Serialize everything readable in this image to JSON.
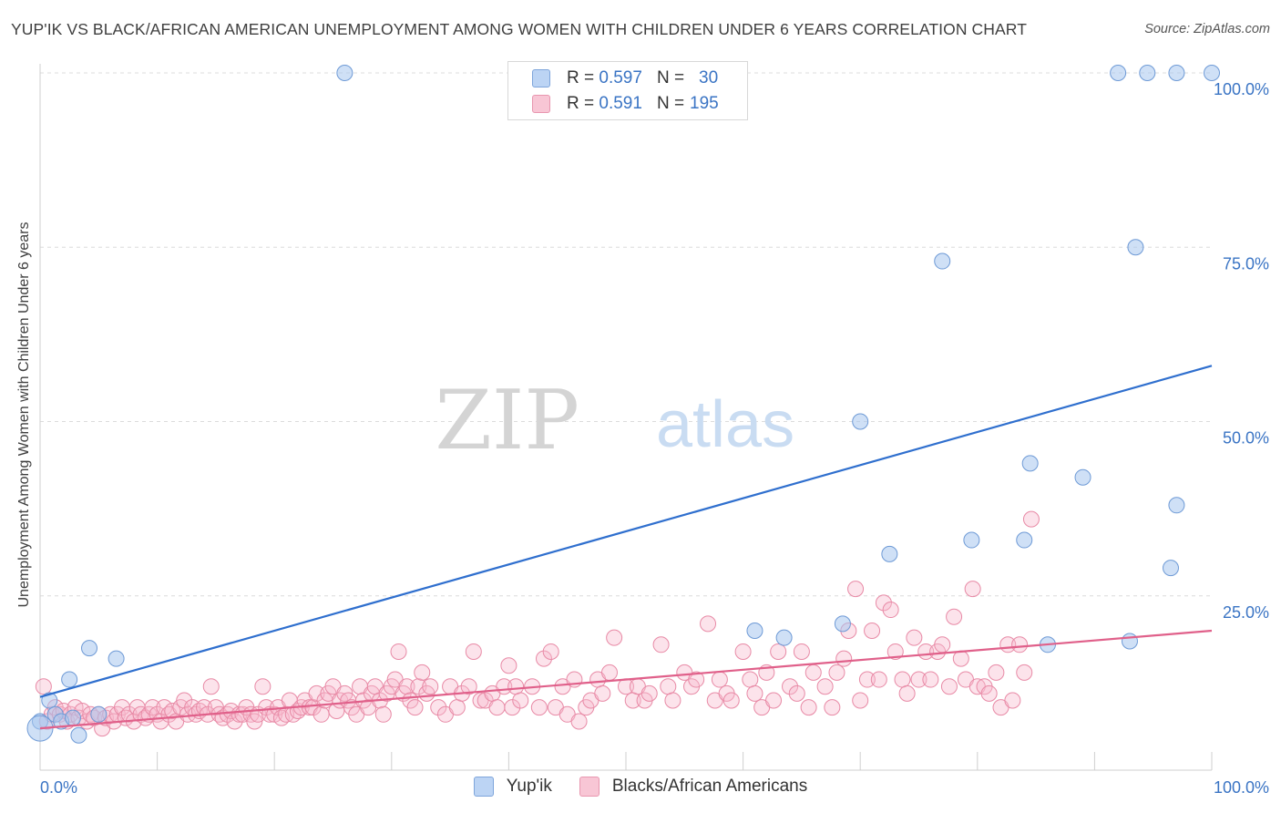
{
  "header": {
    "title": "YUP'IK VS BLACK/AFRICAN AMERICAN UNEMPLOYMENT AMONG WOMEN WITH CHILDREN UNDER 6 YEARS CORRELATION CHART",
    "source": "Source: ZipAtlas.com"
  },
  "watermark": {
    "zip": "ZIP",
    "atlas": "atlas"
  },
  "legend": {
    "r_label": "R =",
    "n_label": "N =",
    "rows": [
      {
        "r": "0.597",
        "n": "30"
      },
      {
        "r": "0.591",
        "n": "195"
      }
    ]
  },
  "chart_data": {
    "type": "scatter",
    "title": "YUP'IK VS BLACK/AFRICAN AMERICAN UNEMPLOYMENT AMONG WOMEN WITH CHILDREN UNDER 6 YEARS CORRELATION CHART",
    "xlabel": "",
    "ylabel": "Unemployment Among Women with Children Under 6 years",
    "xlim": [
      0,
      100
    ],
    "ylim": [
      0,
      100
    ],
    "x_tick_labels": [
      "0.0%",
      "100.0%"
    ],
    "y_tick_labels": [
      "25.0%",
      "50.0%",
      "75.0%",
      "100.0%"
    ],
    "y_ticks": [
      25,
      50,
      75,
      100
    ],
    "grid": "horizontal dashed",
    "legend_position": "top-center and bottom",
    "series": [
      {
        "name": "Yup'ik",
        "color": "#a8c6ef",
        "stroke": "#6e9ad6",
        "trend_color": "#2f6fce",
        "r": 0.597,
        "n": 30,
        "trend": [
          [
            0,
            10.5
          ],
          [
            100,
            58
          ]
        ],
        "points": [
          [
            0,
            7
          ],
          [
            0.8,
            10
          ],
          [
            1.3,
            8
          ],
          [
            1.8,
            7
          ],
          [
            2.5,
            13
          ],
          [
            2.8,
            7.5
          ],
          [
            3.3,
            5
          ],
          [
            4.2,
            17.5
          ],
          [
            5,
            8
          ],
          [
            6.5,
            16
          ],
          [
            26,
            100
          ],
          [
            61,
            20
          ],
          [
            63.5,
            19
          ],
          [
            68.5,
            21
          ],
          [
            70,
            50
          ],
          [
            72.5,
            31
          ],
          [
            77,
            73
          ],
          [
            79.5,
            33
          ],
          [
            84,
            33
          ],
          [
            84.5,
            44
          ],
          [
            86,
            18
          ],
          [
            89,
            42
          ],
          [
            92,
            100
          ],
          [
            93,
            18.5
          ],
          [
            93.5,
            75
          ],
          [
            94.5,
            100
          ],
          [
            96.5,
            29
          ],
          [
            97,
            38
          ],
          [
            97,
            100
          ],
          [
            100,
            100
          ]
        ]
      },
      {
        "name": "Blacks/African Americans",
        "color": "#f7b9cc",
        "stroke": "#e88aa6",
        "trend_color": "#e0608a",
        "r": 0.591,
        "n": 195,
        "trend": [
          [
            0,
            6
          ],
          [
            100,
            20
          ]
        ],
        "points": [
          [
            0.3,
            12
          ],
          [
            0.6,
            7
          ],
          [
            1,
            8
          ],
          [
            1.3,
            9
          ],
          [
            1.7,
            8
          ],
          [
            2,
            8.5
          ],
          [
            2.3,
            7
          ],
          [
            2.6,
            8
          ],
          [
            3,
            9
          ],
          [
            3.3,
            7.5
          ],
          [
            3.6,
            8.5
          ],
          [
            4,
            7
          ],
          [
            4.3,
            8
          ],
          [
            4.6,
            7.5
          ],
          [
            5,
            8
          ],
          [
            5.3,
            6
          ],
          [
            5.6,
            7.5
          ],
          [
            6,
            8
          ],
          [
            6.3,
            7
          ],
          [
            6.6,
            8
          ],
          [
            7,
            9
          ],
          [
            7.3,
            7.5
          ],
          [
            7.6,
            8
          ],
          [
            8,
            7
          ],
          [
            8.3,
            9
          ],
          [
            8.6,
            8
          ],
          [
            9,
            7.5
          ],
          [
            9.3,
            8
          ],
          [
            9.6,
            9
          ],
          [
            10,
            8
          ],
          [
            10.3,
            7
          ],
          [
            10.6,
            9
          ],
          [
            11,
            8
          ],
          [
            11.3,
            8.5
          ],
          [
            11.6,
            7
          ],
          [
            12,
            9
          ],
          [
            12.3,
            10
          ],
          [
            12.6,
            8
          ],
          [
            13,
            9
          ],
          [
            13.3,
            8
          ],
          [
            13.6,
            8.5
          ],
          [
            14,
            9
          ],
          [
            14.3,
            8
          ],
          [
            14.6,
            12
          ],
          [
            15,
            9
          ],
          [
            15.3,
            8
          ],
          [
            15.6,
            7.5
          ],
          [
            16,
            8
          ],
          [
            16.3,
            8.5
          ],
          [
            16.6,
            7
          ],
          [
            17,
            8
          ],
          [
            17.3,
            8
          ],
          [
            17.6,
            9
          ],
          [
            18,
            8
          ],
          [
            18.3,
            7
          ],
          [
            18.6,
            8
          ],
          [
            19,
            12
          ],
          [
            19.3,
            9
          ],
          [
            19.6,
            8
          ],
          [
            20,
            8
          ],
          [
            20.3,
            9
          ],
          [
            20.6,
            7.5
          ],
          [
            21,
            8
          ],
          [
            21.3,
            10
          ],
          [
            21.6,
            8
          ],
          [
            22,
            8.5
          ],
          [
            22.3,
            9
          ],
          [
            22.6,
            10
          ],
          [
            23,
            9
          ],
          [
            23.3,
            9
          ],
          [
            23.6,
            11
          ],
          [
            24,
            8
          ],
          [
            24.3,
            10
          ],
          [
            24.6,
            11
          ],
          [
            25,
            12
          ],
          [
            25.3,
            8.5
          ],
          [
            25.6,
            10
          ],
          [
            26,
            11
          ],
          [
            26.3,
            10
          ],
          [
            26.6,
            9
          ],
          [
            27,
            8
          ],
          [
            27.3,
            12
          ],
          [
            27.6,
            10
          ],
          [
            28,
            9
          ],
          [
            28.3,
            11
          ],
          [
            28.6,
            12
          ],
          [
            29,
            10
          ],
          [
            29.3,
            8
          ],
          [
            29.6,
            11
          ],
          [
            30,
            12
          ],
          [
            30.3,
            13
          ],
          [
            30.6,
            17
          ],
          [
            31,
            11
          ],
          [
            31.3,
            12
          ],
          [
            31.6,
            10
          ],
          [
            32,
            9
          ],
          [
            32.3,
            12
          ],
          [
            32.6,
            14
          ],
          [
            33,
            11
          ],
          [
            33.3,
            12
          ],
          [
            34,
            9
          ],
          [
            34.6,
            8
          ],
          [
            35,
            12
          ],
          [
            35.6,
            9
          ],
          [
            36,
            11
          ],
          [
            36.6,
            12
          ],
          [
            37,
            17
          ],
          [
            37.6,
            10
          ],
          [
            38,
            10
          ],
          [
            38.6,
            11
          ],
          [
            39,
            9
          ],
          [
            39.6,
            12
          ],
          [
            40,
            15
          ],
          [
            40.3,
            9
          ],
          [
            40.6,
            12
          ],
          [
            41,
            10
          ],
          [
            42,
            12
          ],
          [
            42.6,
            9
          ],
          [
            43,
            16
          ],
          [
            43.6,
            17
          ],
          [
            44,
            9
          ],
          [
            44.6,
            12
          ],
          [
            45,
            8
          ],
          [
            45.6,
            13
          ],
          [
            46,
            7
          ],
          [
            46.6,
            9
          ],
          [
            47,
            10
          ],
          [
            47.6,
            13
          ],
          [
            48,
            11
          ],
          [
            48.6,
            14
          ],
          [
            49,
            19
          ],
          [
            50,
            12
          ],
          [
            50.6,
            10
          ],
          [
            51,
            12
          ],
          [
            51.6,
            10
          ],
          [
            52,
            11
          ],
          [
            53,
            18
          ],
          [
            53.6,
            12
          ],
          [
            54,
            10
          ],
          [
            55,
            14
          ],
          [
            55.6,
            12
          ],
          [
            56,
            13
          ],
          [
            57,
            21
          ],
          [
            57.6,
            10
          ],
          [
            58,
            13
          ],
          [
            58.6,
            11
          ],
          [
            59,
            10
          ],
          [
            60,
            17
          ],
          [
            60.6,
            13
          ],
          [
            61,
            11
          ],
          [
            61.6,
            9
          ],
          [
            62,
            14
          ],
          [
            62.6,
            10
          ],
          [
            63,
            17
          ],
          [
            64,
            12
          ],
          [
            64.6,
            11
          ],
          [
            65,
            17
          ],
          [
            65.6,
            9
          ],
          [
            66,
            14
          ],
          [
            67,
            12
          ],
          [
            67.6,
            9
          ],
          [
            68,
            14
          ],
          [
            68.6,
            16
          ],
          [
            69,
            20
          ],
          [
            69.6,
            26
          ],
          [
            70,
            10
          ],
          [
            70.6,
            13
          ],
          [
            71,
            20
          ],
          [
            71.6,
            13
          ],
          [
            72,
            24
          ],
          [
            72.6,
            23
          ],
          [
            73,
            17
          ],
          [
            73.6,
            13
          ],
          [
            74,
            11
          ],
          [
            74.6,
            19
          ],
          [
            75,
            13
          ],
          [
            75.6,
            17
          ],
          [
            76,
            13
          ],
          [
            76.6,
            17
          ],
          [
            77,
            18
          ],
          [
            77.6,
            12
          ],
          [
            78,
            22
          ],
          [
            78.6,
            16
          ],
          [
            79,
            13
          ],
          [
            79.6,
            26
          ],
          [
            80,
            12
          ],
          [
            80.6,
            12
          ],
          [
            81,
            11
          ],
          [
            81.6,
            14
          ],
          [
            82,
            9
          ],
          [
            82.6,
            18
          ],
          [
            83,
            10
          ],
          [
            83.6,
            18
          ],
          [
            84,
            14
          ],
          [
            84.6,
            36
          ]
        ]
      }
    ]
  },
  "bottom_legend": [
    "Yup'ik",
    "Blacks/African Americans"
  ]
}
